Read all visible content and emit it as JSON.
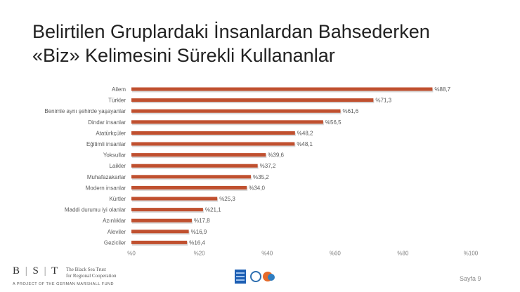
{
  "title": {
    "line1": "Belirtilen Gruplardaki İnsanlardan Bahsederken",
    "line2": "«Biz» Kelimesini Sürekli Kullananlar"
  },
  "chart_data": {
    "type": "bar",
    "orientation": "horizontal",
    "categories": [
      "Ailem",
      "Türkler",
      "Benimle aynı şehirde yaşayanlar",
      "Dindar insanlar",
      "Atatürkçüler",
      "Eğitimli insanlar",
      "Yoksullar",
      "Laikler",
      "Muhafazakarlar",
      "Modern insanlar",
      "Kürtler",
      "Maddi durumu iyi olanlar",
      "Azınlıklar",
      "Aleviler",
      "Geziciler"
    ],
    "values": [
      88.7,
      71.3,
      61.6,
      56.5,
      48.2,
      48.1,
      39.6,
      37.2,
      35.2,
      34.0,
      25.3,
      21.1,
      17.8,
      16.9,
      16.4
    ],
    "value_labels": [
      "%88,7",
      "%71,3",
      "%61,6",
      "%56,5",
      "%48,2",
      "%48,1",
      "%39,6",
      "%37,2",
      "%35,2",
      "%34,0",
      "%25,3",
      "%21,1",
      "%17,8",
      "%16,9",
      "%16,4"
    ],
    "xlim": [
      0,
      100
    ],
    "x_ticks": [
      0,
      20,
      40,
      60,
      80,
      100
    ],
    "x_tick_labels": [
      "%0",
      "%20",
      "%40",
      "%60",
      "%80",
      "%100"
    ],
    "bar_color": "#c0502f",
    "bar_shadow_color": "#d9d9d9",
    "grid": false,
    "legend": "none"
  },
  "footer": {
    "logo_text": {
      "b": "B",
      "s": "S",
      "t": "T"
    },
    "org_line1": "The Black Sea Trust",
    "org_line2": "for Regional Cooperation",
    "project_line": "A PROJECT OF THE GERMAN MARSHALL FUND",
    "page_label": "Sayfa 9"
  }
}
